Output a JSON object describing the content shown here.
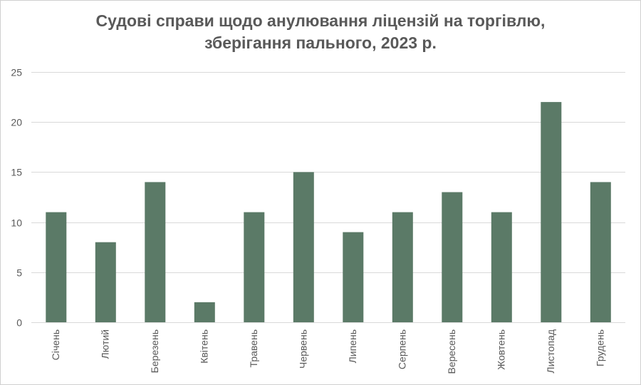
{
  "chart_data": {
    "type": "bar",
    "title_lines": [
      "Судові справи щодо анулювання ліцензій на торгівлю,",
      "зберігання пального, 2023 р."
    ],
    "xlabel": "",
    "ylabel": "",
    "categories": [
      "Січень",
      "Лютий",
      "Березень",
      "Квітень",
      "Травень",
      "Червень",
      "Липень",
      "Серпень",
      "Вересень",
      "Жовтень",
      "Листопад",
      "Грудень"
    ],
    "values": [
      11,
      8,
      14,
      2,
      11,
      15,
      9,
      11,
      13,
      11,
      22,
      14
    ],
    "ylim": [
      0,
      25
    ],
    "yticks": [
      0,
      5,
      10,
      15,
      20,
      25
    ],
    "grid": true,
    "bar_color": "#5b7a67",
    "grid_color": "#d9d9d9",
    "legend": "none"
  }
}
